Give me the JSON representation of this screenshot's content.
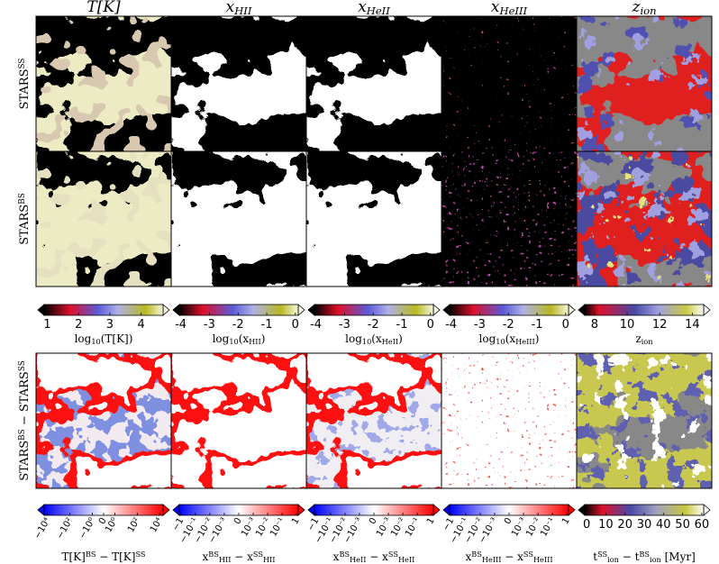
{
  "columns": [
    [
      {
        "text": "T"
      },
      {
        "text": "[K]"
      }
    ],
    [
      {
        "text": "x"
      },
      {
        "text": "HII",
        "pos": "sub"
      }
    ],
    [
      {
        "text": "x"
      },
      {
        "text": "HeII",
        "pos": "sub"
      }
    ],
    [
      {
        "text": "x"
      },
      {
        "text": "HeIII",
        "pos": "sub"
      }
    ],
    [
      {
        "text": "z"
      },
      {
        "text": "ion",
        "pos": "sub"
      }
    ]
  ],
  "rows": [
    [
      {
        "text": "STARS"
      },
      {
        "text": "SS",
        "pos": "sup"
      }
    ],
    [
      {
        "text": "STARS"
      },
      {
        "text": "BS",
        "pos": "sup"
      }
    ],
    [
      {
        "text": "STARS"
      },
      {
        "text": "BS",
        "pos": "sup"
      },
      {
        "text": " − STARS"
      },
      {
        "text": "SS",
        "pos": "sup"
      }
    ]
  ],
  "colorbars": [
    [
      {
        "lim": [
          0.9,
          4.7
        ],
        "ticks": [
          1,
          2,
          3,
          4
        ],
        "gradient": "g-temp",
        "label": [
          {
            "text": "log"
          },
          {
            "text": "10",
            "pos": "sub"
          },
          {
            "text": "(T[K])"
          }
        ]
      },
      {
        "lim": [
          -4.05,
          0.1
        ],
        "ticks": [
          -4,
          -3,
          -2,
          -1,
          0
        ],
        "gradient": "g-frac",
        "label": [
          {
            "text": "log"
          },
          {
            "text": "10",
            "pos": "sub"
          },
          {
            "text": "(x"
          },
          {
            "text": "HII",
            "pos": "sub"
          },
          {
            "text": ")"
          }
        ]
      },
      {
        "lim": [
          -4.05,
          0.1
        ],
        "ticks": [
          -4,
          -3,
          -2,
          -1,
          0
        ],
        "gradient": "g-frac",
        "label": [
          {
            "text": "log"
          },
          {
            "text": "10",
            "pos": "sub"
          },
          {
            "text": "(x"
          },
          {
            "text": "HeII",
            "pos": "sub"
          },
          {
            "text": ")"
          }
        ]
      },
      {
        "lim": [
          -4.05,
          0.1
        ],
        "ticks": [
          -4,
          -3,
          -2,
          -1,
          0
        ],
        "gradient": "g-frac",
        "label": [
          {
            "text": "log"
          },
          {
            "text": "10",
            "pos": "sub"
          },
          {
            "text": "(x"
          },
          {
            "text": "HeIII",
            "pos": "sub"
          },
          {
            "text": ")"
          }
        ]
      },
      {
        "lim": [
          7.4,
          14.7
        ],
        "ticks": [
          8,
          10,
          12,
          14
        ],
        "gradient": "g-zion",
        "label": [
          {
            "text": "z"
          },
          {
            "text": "ion",
            "pos": "sub"
          }
        ]
      }
    ],
    [
      {
        "lim": [
          -20000,
          20000
        ],
        "scale": "symlog",
        "linthresh": 1,
        "gradient": "g-bwr",
        "ticks": [
          {
            "value": -10000,
            "label": "−10⁴"
          },
          {
            "value": -100,
            "label": "−10²"
          },
          {
            "value": -1,
            "label": "−10⁰"
          },
          0,
          {
            "value": 1,
            "label": "10⁰"
          },
          {
            "value": 100,
            "label": "10²"
          },
          {
            "value": 10000,
            "label": "10⁴"
          }
        ],
        "label": [
          {
            "text": "T[K]"
          },
          {
            "text": "BS",
            "pos": "sup"
          },
          {
            "text": " − T[K]"
          },
          {
            "text": "SS",
            "pos": "sup"
          }
        ]
      },
      {
        "lim": [
          -1.3,
          1.3
        ],
        "scale": "symlog",
        "linthresh": 0.001,
        "gradient": "g-bwr",
        "ticks": [
          {
            "value": -1,
            "label": "−1"
          },
          {
            "value": -0.1,
            "label": "−10⁻¹"
          },
          {
            "value": -0.01,
            "label": "−10⁻²"
          },
          {
            "value": -0.001,
            "label": "−10⁻³"
          },
          0,
          {
            "value": 0.001,
            "label": "10⁻³"
          },
          {
            "value": 0.01,
            "label": "10⁻²"
          },
          {
            "value": 0.1,
            "label": "10⁻¹"
          },
          1
        ],
        "label": [
          {
            "text": "x"
          },
          {
            "text": "BS",
            "pos": "sup"
          },
          {
            "text": "HII",
            "pos": "sub"
          },
          {
            "text": " − x"
          },
          {
            "text": "SS",
            "pos": "sup"
          },
          {
            "text": "HII",
            "pos": "sub"
          }
        ]
      },
      {
        "lim": [
          -1.3,
          1.3
        ],
        "scale": "symlog",
        "linthresh": 0.001,
        "gradient": "g-bwr",
        "ticks": [
          {
            "value": -1,
            "label": "−1"
          },
          {
            "value": -0.1,
            "label": "−10⁻¹"
          },
          {
            "value": -0.01,
            "label": "−10⁻²"
          },
          {
            "value": -0.001,
            "label": "−10⁻³"
          },
          0,
          {
            "value": 0.001,
            "label": "10⁻³"
          },
          {
            "value": 0.01,
            "label": "10⁻²"
          },
          {
            "value": 0.1,
            "label": "10⁻¹"
          },
          1
        ],
        "label": [
          {
            "text": "x"
          },
          {
            "text": "BS",
            "pos": "sup"
          },
          {
            "text": "HeII",
            "pos": "sub"
          },
          {
            "text": " − x"
          },
          {
            "text": "SS",
            "pos": "sup"
          },
          {
            "text": "HeII",
            "pos": "sub"
          }
        ]
      },
      {
        "lim": [
          -1.3,
          1.3
        ],
        "scale": "symlog",
        "linthresh": 0.001,
        "gradient": "g-bwr",
        "ticks": [
          {
            "value": -1,
            "label": "−1"
          },
          {
            "value": -0.1,
            "label": "−10⁻¹"
          },
          {
            "value": -0.01,
            "label": "−10⁻²"
          },
          {
            "value": -0.001,
            "label": "−10⁻³"
          },
          0,
          {
            "value": 0.001,
            "label": "10⁻³"
          },
          {
            "value": 0.01,
            "label": "10⁻²"
          },
          {
            "value": 0.1,
            "label": "10⁻¹"
          },
          1
        ],
        "label": [
          {
            "text": "x"
          },
          {
            "text": "BS",
            "pos": "sup"
          },
          {
            "text": "HeIII",
            "pos": "sub"
          },
          {
            "text": " − x"
          },
          {
            "text": "SS",
            "pos": "sup"
          },
          {
            "text": "HeIII",
            "pos": "sub"
          }
        ]
      },
      {
        "lim": [
          -1,
          61
        ],
        "ticks": [
          0,
          10,
          20,
          30,
          40,
          50,
          60
        ],
        "gradient": "g-time",
        "label": [
          {
            "text": "t"
          },
          {
            "text": "SS",
            "pos": "sup"
          },
          {
            "text": "ion",
            "pos": "sub"
          },
          {
            "text": " − t"
          },
          {
            "text": "BS",
            "pos": "sup"
          },
          {
            "text": "ion",
            "pos": "sub"
          },
          {
            "text": " [Myr]"
          }
        ]
      }
    ]
  ]
}
